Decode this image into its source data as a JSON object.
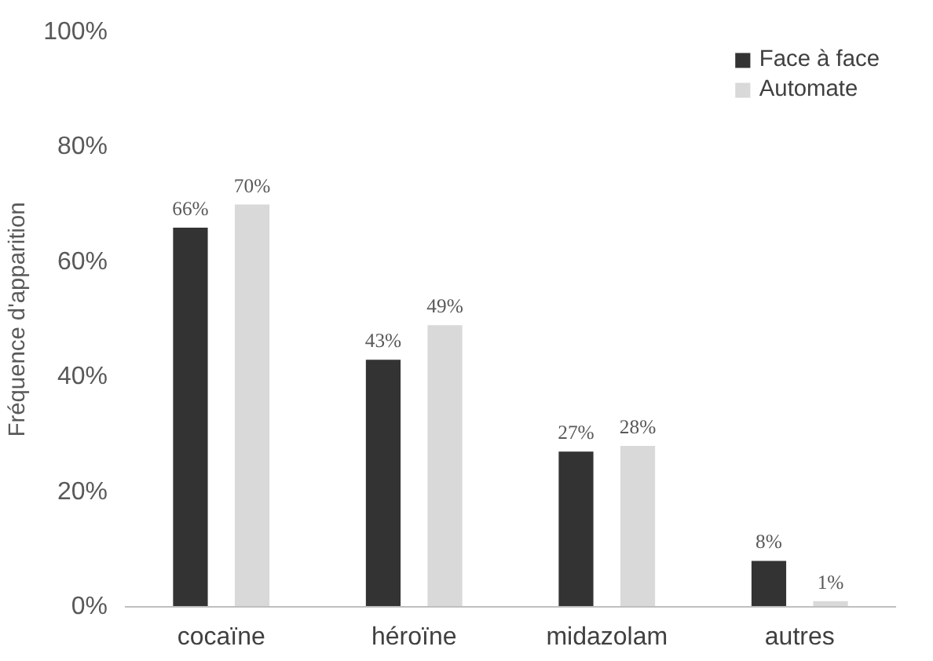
{
  "chart_data": {
    "type": "bar",
    "ylabel": "Fréquence d'apparition",
    "categories": [
      "cocaïne",
      "héroïne",
      "midazolam",
      "autres"
    ],
    "series": [
      {
        "name": "Face à face",
        "color": "#333333",
        "values": [
          66,
          43,
          27,
          8
        ],
        "value_labels": [
          "66%",
          "43%",
          "27%",
          "8%"
        ]
      },
      {
        "name": "Automate",
        "color": "#d9d9d9",
        "values": [
          70,
          49,
          28,
          1
        ],
        "value_labels": [
          "70%",
          "49%",
          "28%",
          "1%"
        ]
      }
    ],
    "ylim": [
      0,
      100
    ],
    "yticks": [
      {
        "value": 0,
        "label": "0%"
      },
      {
        "value": 20,
        "label": "20%"
      },
      {
        "value": 40,
        "label": "40%"
      },
      {
        "value": 60,
        "label": "60%"
      },
      {
        "value": 80,
        "label": "80%"
      },
      {
        "value": 100,
        "label": "100%"
      }
    ],
    "grid": false,
    "legend": "top right"
  }
}
